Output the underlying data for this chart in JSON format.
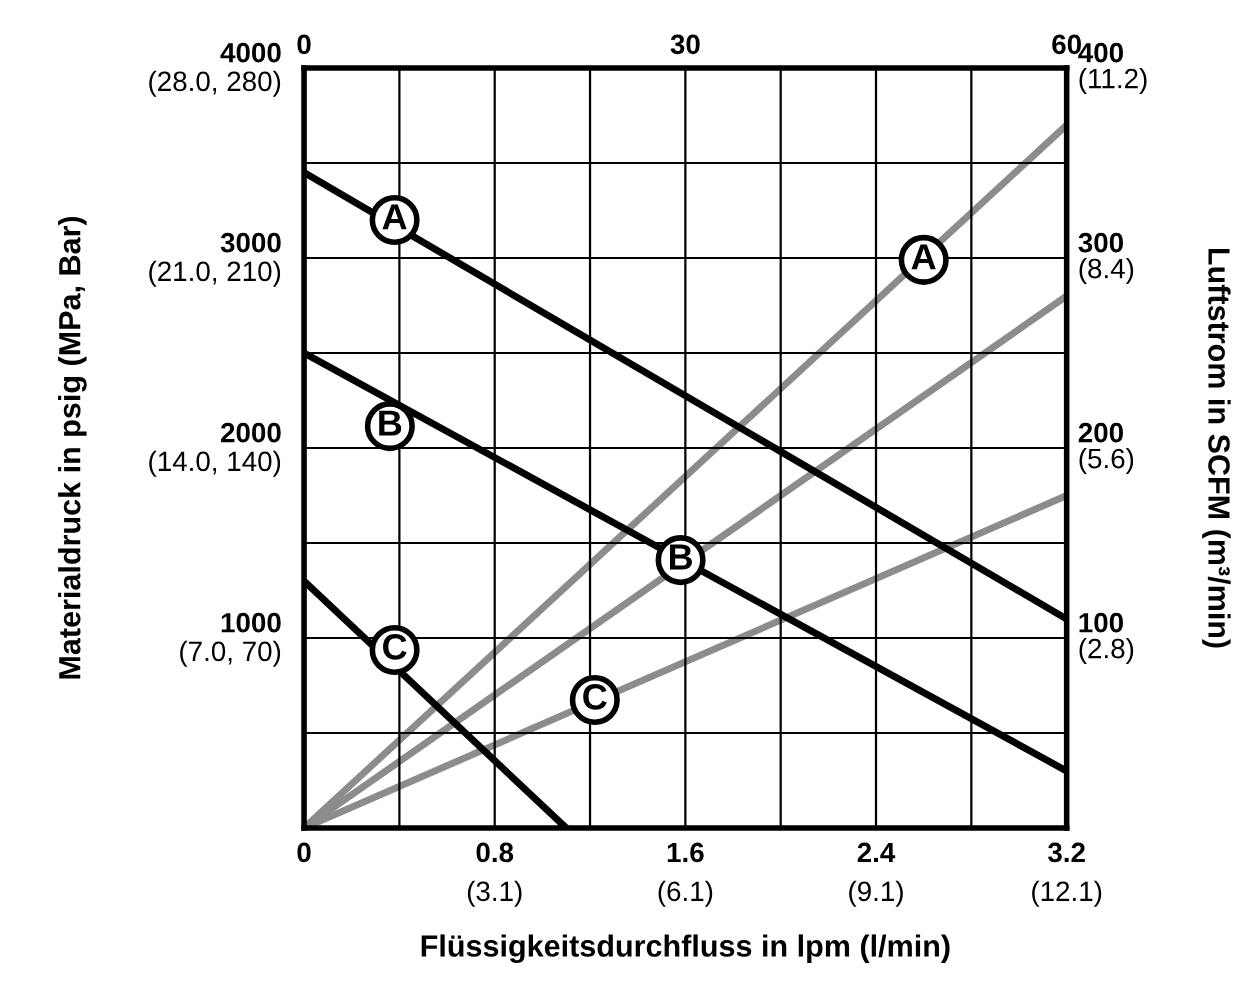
{
  "chart_data": {
    "type": "line",
    "xlabel": "Flüssigkeitsdurchfluss in lpm (l/min)",
    "ylabel": "Materialdruck in psig (MPa, Bar)",
    "y2label": "Luftstrom in SCFM (m³/min)",
    "xlim": [
      0,
      3.2
    ],
    "xticks": [
      0,
      {
        "value": 0.4,
        "label": null
      },
      0.8,
      {
        "value": 1.2,
        "label": null
      },
      1.6,
      {
        "value": 2.0,
        "label": null
      },
      2.4,
      {
        "value": 2.8,
        "label": null
      },
      3.2
    ],
    "ylim": [
      0,
      4000
    ],
    "yticks": [
      {
        "value": 500,
        "label": null
      },
      1000,
      {
        "value": 1500,
        "label": null
      },
      2000,
      {
        "value": 2500,
        "label": null
      },
      3000,
      {
        "value": 3500,
        "label": null
      },
      4000
    ],
    "y2lim": [
      0,
      400
    ],
    "y2ticks": [
      100,
      200,
      300,
      400
    ],
    "x2lim": [
      0,
      60
    ],
    "x2ticks": [
      0,
      30,
      60
    ],
    "y3lim": [
      0,
      11.2
    ],
    "y3ticks": [
      {
        "value": 2.8,
        "label": "(2.8)"
      },
      {
        "value": 5.6,
        "label": "(5.6)"
      },
      {
        "value": 8.4,
        "label": "(8.4)"
      },
      {
        "value": 11.2,
        "label": "(11.2)"
      }
    ],
    "grid": true,
    "marker": "none",
    "line_style": "solid",
    "series": [
      {
        "color": "#000000",
        "x": [
          0,
          3.2
        ],
        "values": [
          3450,
          1100
        ]
      },
      {
        "color": "#000000",
        "x": [
          0,
          3.2
        ],
        "values": [
          2500,
          300
        ]
      },
      {
        "color": "#000000",
        "x": [
          0,
          1.1
        ],
        "values": [
          1300,
          0
        ]
      },
      {
        "color": "#8c8c8c",
        "axis": "y2",
        "x": [
          0,
          3.2
        ],
        "values": [
          0,
          370
        ]
      },
      {
        "color": "#8c8c8c",
        "axis": "y2",
        "x": [
          0,
          3.2
        ],
        "values": [
          0,
          280
        ]
      },
      {
        "color": "#8c8c8c",
        "axis": "y2",
        "x": [
          0,
          3.2
        ],
        "values": [
          0,
          175
        ]
      }
    ],
    "annotations": [
      {
        "text": "A",
        "x": 0.38,
        "y": 3200
      },
      {
        "text": "A",
        "x": 2.6,
        "y": 2990
      },
      {
        "text": "B",
        "x": 0.36,
        "y": 2115
      },
      {
        "text": "B",
        "x": 1.58,
        "y": 1410
      },
      {
        "text": "C",
        "x": 0.38,
        "y": 937
      },
      {
        "text": "C",
        "x": 1.22,
        "y": 674
      },
      "(7.0, 70)",
      "(14.0, 140)",
      "(21.0, 210)",
      "(28.0, 280)",
      "(3.1)",
      "(6.1)",
      "(9.1)",
      "(12.1)"
    ]
  }
}
